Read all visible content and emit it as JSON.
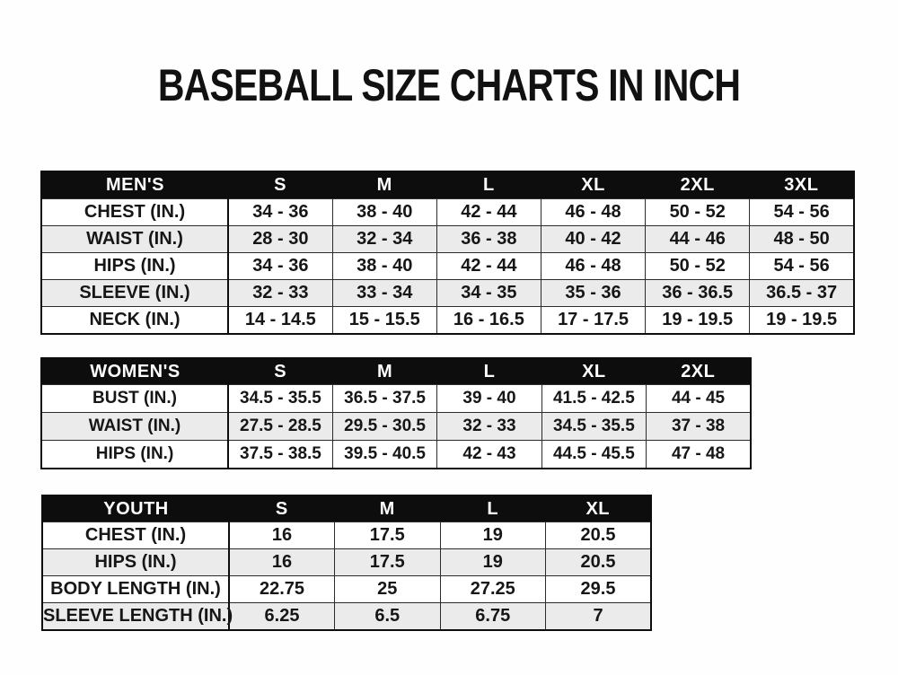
{
  "title": "BASEBALL SIZE CHARTS IN INCH",
  "colors": {
    "header_bg": "#0d0d0d",
    "header_text": "#ffffff",
    "row_stripe": "#ebebeb",
    "row_plain": "#ffffff",
    "border": "#2b2b2b",
    "text": "#161616",
    "page_bg": "#fefefe"
  },
  "chart_data": [
    {
      "type": "table",
      "name": "mens",
      "title": "MEN'S",
      "columns": [
        "MEN'S",
        "S",
        "M",
        "L",
        "XL",
        "2XL",
        "3XL"
      ],
      "rows": [
        [
          "CHEST (IN.)",
          "34 - 36",
          "38 - 40",
          "42 - 44",
          "46 - 48",
          "50 - 52",
          "54 - 56"
        ],
        [
          "WAIST (IN.)",
          "28 - 30",
          "32 - 34",
          "36 - 38",
          "40 - 42",
          "44 - 46",
          "48 - 50"
        ],
        [
          "HIPS (IN.)",
          "34 - 36",
          "38 - 40",
          "42 - 44",
          "46 - 48",
          "50 - 52",
          "54 - 56"
        ],
        [
          "SLEEVE (IN.)",
          "32 - 33",
          "33 - 34",
          "34 - 35",
          "35 - 36",
          "36 - 36.5",
          "36.5 - 37"
        ],
        [
          "NECK (IN.)",
          "14 - 14.5",
          "15 - 15.5",
          "16 - 16.5",
          "17 - 17.5",
          "19 - 19.5",
          "19 - 19.5"
        ]
      ]
    },
    {
      "type": "table",
      "name": "womens",
      "title": "WOMEN'S",
      "columns": [
        "WOMEN'S",
        "S",
        "M",
        "L",
        "XL",
        "2XL"
      ],
      "rows": [
        [
          "BUST (IN.)",
          "34.5 - 35.5",
          "36.5 - 37.5",
          "39 - 40",
          "41.5 - 42.5",
          "44 - 45"
        ],
        [
          "WAIST (IN.)",
          "27.5 - 28.5",
          "29.5 - 30.5",
          "32 - 33",
          "34.5 - 35.5",
          "37 - 38"
        ],
        [
          "HIPS (IN.)",
          "37.5 - 38.5",
          "39.5 - 40.5",
          "42 - 43",
          "44.5 - 45.5",
          "47 - 48"
        ]
      ]
    },
    {
      "type": "table",
      "name": "youth",
      "title": "YOUTH",
      "columns": [
        "YOUTH",
        "S",
        "M",
        "L",
        "XL"
      ],
      "rows": [
        [
          "CHEST (IN.)",
          "16",
          "17.5",
          "19",
          "20.5"
        ],
        [
          "HIPS (IN.)",
          "16",
          "17.5",
          "19",
          "20.5"
        ],
        [
          "BODY LENGTH (IN.)",
          "22.75",
          "25",
          "27.25",
          "29.5"
        ],
        [
          "SLEEVE LENGTH (IN.)",
          "6.25",
          "6.5",
          "6.75",
          "7"
        ]
      ]
    }
  ]
}
